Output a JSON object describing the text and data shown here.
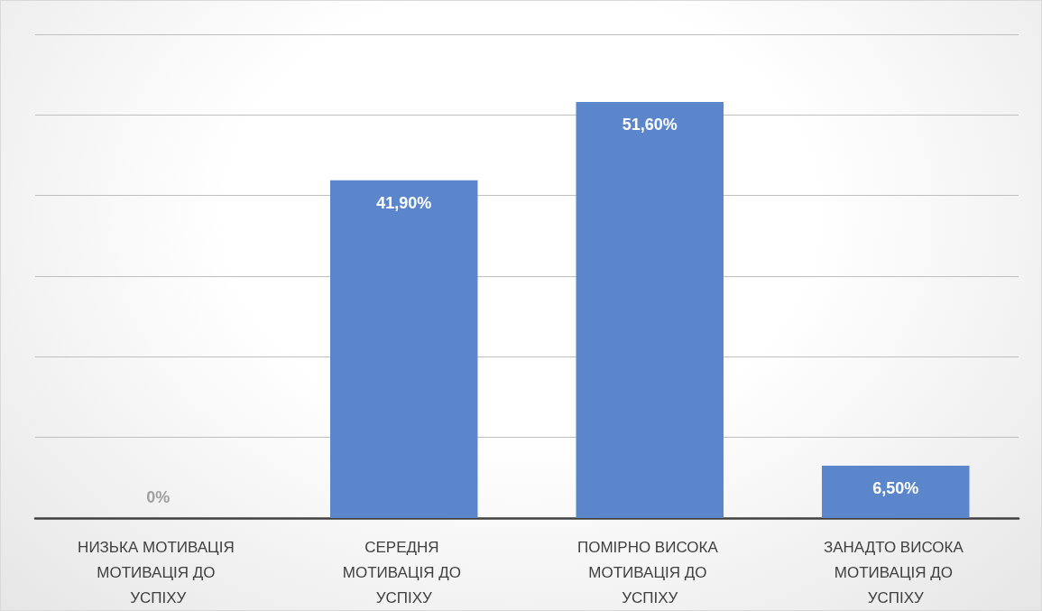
{
  "chart_data": {
    "type": "bar",
    "categories": [
      "НИЗЬКА МОТИВАЦІЯ МОТИВАЦІЯ ДО УСПІХУ",
      "СЕРЕДНЯ МОТИВАЦІЯ ДО УСПІХУ",
      "ПОМІРНО ВИСОКА МОТИВАЦІЯ ДО УСПІХУ",
      "ЗАНАДТО ВИСОКА МОТИВАЦІЯ ДО УСПІХУ"
    ],
    "values": [
      0,
      41.9,
      51.6,
      6.5
    ],
    "value_labels": [
      "0%",
      "41,90%",
      "51,60%",
      "6,50%"
    ],
    "color": "#5b86cc",
    "ylim": [
      0,
      60
    ],
    "yticks": [
      {
        "value": 0,
        "label": null
      },
      {
        "value": 10,
        "label": null
      },
      {
        "value": 20,
        "label": null
      },
      {
        "value": 30,
        "label": null
      },
      {
        "value": 40,
        "label": null
      },
      {
        "value": 50,
        "label": null
      },
      {
        "value": 60,
        "label": null
      }
    ],
    "tick_labels": "x",
    "grid": "y"
  }
}
